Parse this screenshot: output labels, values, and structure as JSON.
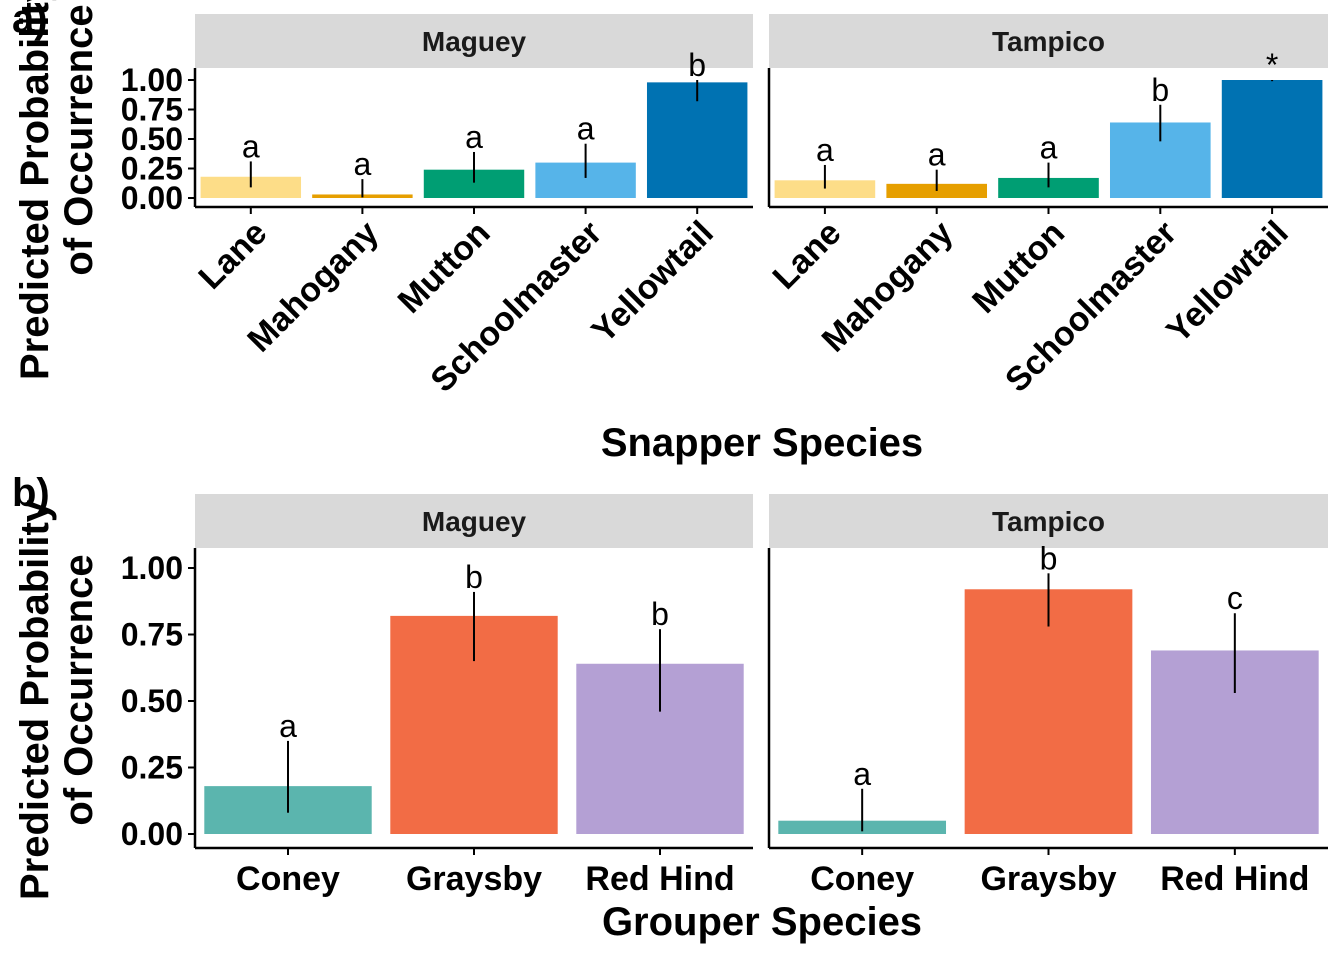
{
  "chart_data": [
    {
      "type": "bar",
      "tag": "a)",
      "ylabel_line1": "Predicted Probability",
      "ylabel_line2": "of Occurrence",
      "xlabel": "Snapper Species",
      "ylim": [
        0,
        1
      ],
      "yticks": [
        "0.00",
        "0.25",
        "0.50",
        "0.75",
        "1.00"
      ],
      "ytick_values": [
        0,
        0.25,
        0.5,
        0.75,
        1
      ],
      "categories": [
        "Lane",
        "Mahogany",
        "Mutton",
        "Schoolmaster",
        "Yellowtail"
      ],
      "colors": [
        "#FDDD88",
        "#E69F00",
        "#009E73",
        "#56B4E9",
        "#0072B2"
      ],
      "x_label_rotation": "45-degrees",
      "facets": [
        {
          "name": "Maguey",
          "values": [
            0.18,
            0.03,
            0.24,
            0.3,
            0.98
          ],
          "err_low": [
            0.09,
            0.005,
            0.13,
            0.17,
            0.82
          ],
          "err_high": [
            0.31,
            0.16,
            0.39,
            0.46,
            1.0
          ],
          "labels": [
            "a",
            "a",
            "a",
            "a",
            "b"
          ]
        },
        {
          "name": "Tampico",
          "values": [
            0.15,
            0.12,
            0.17,
            0.64,
            1.0
          ],
          "err_low": [
            0.08,
            0.06,
            0.09,
            0.48,
            0.99
          ],
          "err_high": [
            0.28,
            0.24,
            0.3,
            0.79,
            1.0
          ],
          "labels": [
            "a",
            "a",
            "a",
            "b",
            "*"
          ]
        }
      ]
    },
    {
      "type": "bar",
      "tag": "b)",
      "ylabel_line1": "Predicted Probability",
      "ylabel_line2": "of Occurrence",
      "xlabel": "Grouper Species",
      "ylim": [
        0,
        1
      ],
      "yticks": [
        "0.00",
        "0.25",
        "0.50",
        "0.75",
        "1.00"
      ],
      "ytick_values": [
        0,
        0.25,
        0.5,
        0.75,
        1
      ],
      "categories": [
        "Coney",
        "Graysby",
        "Red Hind"
      ],
      "colors": [
        "#5BB5AE",
        "#F26C45",
        "#B4A0D4"
      ],
      "x_label_rotation": "none",
      "facets": [
        {
          "name": "Maguey",
          "values": [
            0.18,
            0.82,
            0.64
          ],
          "err_low": [
            0.08,
            0.65,
            0.46
          ],
          "err_high": [
            0.35,
            0.91,
            0.77
          ],
          "labels": [
            "a",
            "b",
            "b"
          ]
        },
        {
          "name": "Tampico",
          "values": [
            0.05,
            0.92,
            0.69
          ],
          "err_low": [
            0.01,
            0.78,
            0.53
          ],
          "err_high": [
            0.17,
            0.98,
            0.83
          ],
          "labels": [
            "a",
            "b",
            "c"
          ]
        }
      ]
    }
  ]
}
